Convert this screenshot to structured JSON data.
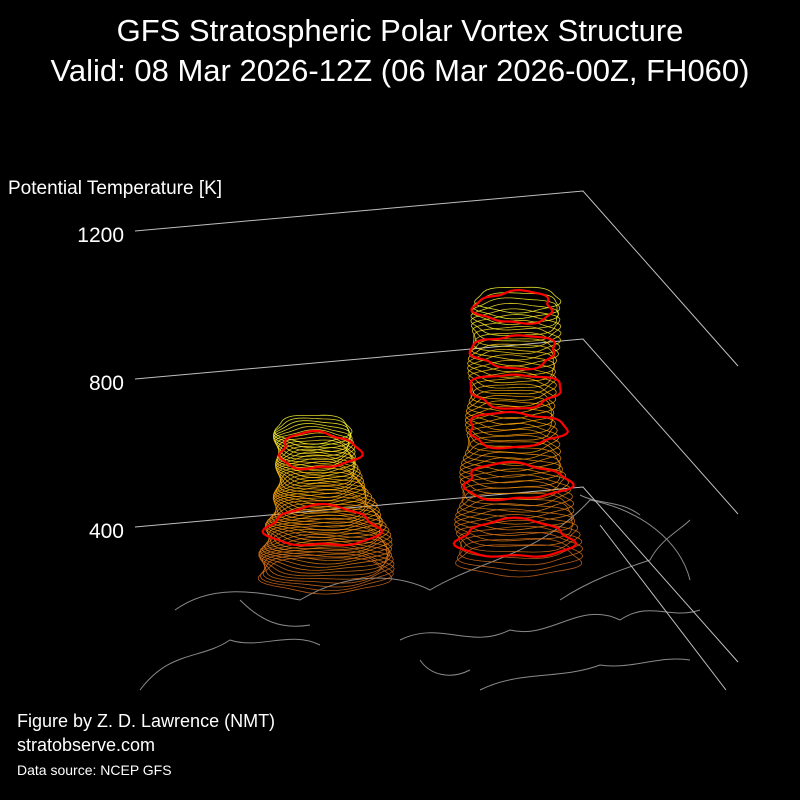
{
  "header": {
    "title": "GFS Stratospheric Polar Vortex Structure",
    "subtitle": "Valid: 08 Mar 2026-12Z  (06 Mar 2026-00Z, FH060)"
  },
  "chart_data": {
    "type": "3d-isosurface",
    "zlabel": "Potential Temperature [K]",
    "z_ticks": [
      400,
      800,
      1200
    ],
    "z_tick_labels": [
      "400",
      "800",
      "1200"
    ],
    "colors": {
      "background": "#000000",
      "low_level": "#d2691e",
      "mid_level": "#ffa500",
      "high_level": "#ffff33",
      "highlight_contour": "#ff0000",
      "axis": "#bfbfbf",
      "coastline": "#8a8a8a"
    },
    "vortex_lobes": [
      {
        "name": "",
        "z_bottom_K": 300,
        "z_top_K": 700
      },
      {
        "name": "",
        "z_bottom_K": 300,
        "z_top_K": 1050
      }
    ]
  },
  "footer": {
    "credit": "Figure by Z. D. Lawrence (NMT)",
    "website": "stratobserve.com",
    "source": "Data source: NCEP GFS"
  }
}
